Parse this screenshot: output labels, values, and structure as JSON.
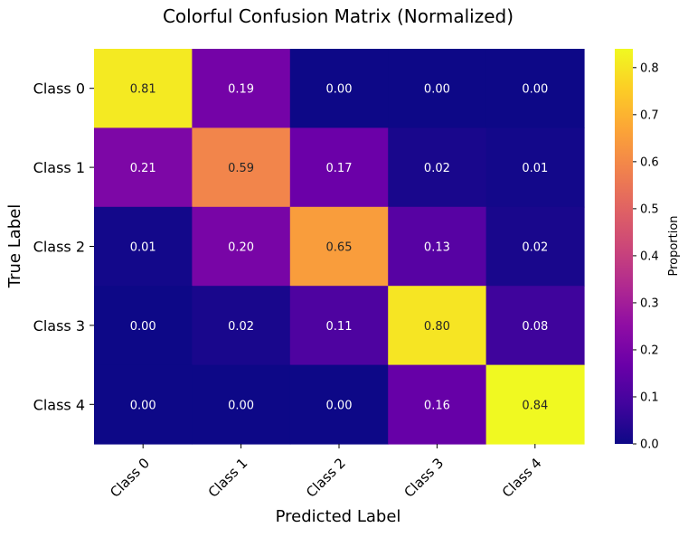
{
  "chart_data": {
    "type": "heatmap",
    "title": "Colorful Confusion Matrix (Normalized)",
    "xlabel": "Predicted Label",
    "ylabel": "True Label",
    "x_categories": [
      "Class 0",
      "Class 1",
      "Class 2",
      "Class 3",
      "Class 4"
    ],
    "y_categories": [
      "Class 0",
      "Class 1",
      "Class 2",
      "Class 3",
      "Class 4"
    ],
    "values": [
      [
        0.81,
        0.19,
        0.0,
        0.0,
        0.0
      ],
      [
        0.21,
        0.59,
        0.17,
        0.02,
        0.01
      ],
      [
        0.01,
        0.2,
        0.65,
        0.13,
        0.02
      ],
      [
        0.0,
        0.02,
        0.11,
        0.8,
        0.08
      ],
      [
        0.0,
        0.0,
        0.0,
        0.16,
        0.84
      ]
    ],
    "value_labels": [
      [
        "0.81",
        "0.19",
        "0.00",
        "0.00",
        "0.00"
      ],
      [
        "0.21",
        "0.59",
        "0.17",
        "0.02",
        "0.01"
      ],
      [
        "0.01",
        "0.20",
        "0.65",
        "0.13",
        "0.02"
      ],
      [
        "0.00",
        "0.02",
        "0.11",
        "0.80",
        "0.08"
      ],
      [
        "0.00",
        "0.00",
        "0.00",
        "0.16",
        "0.84"
      ]
    ],
    "colormap": "plasma",
    "vmin": 0,
    "vmax": 0.84,
    "colorbar": {
      "label": "Proportion",
      "ticks": [
        0.0,
        0.1,
        0.2,
        0.3,
        0.4,
        0.5,
        0.6,
        0.7,
        0.8
      ],
      "tick_labels": [
        "0.0",
        "0.1",
        "0.2",
        "0.3",
        "0.4",
        "0.5",
        "0.6",
        "0.7",
        "0.8"
      ]
    }
  }
}
